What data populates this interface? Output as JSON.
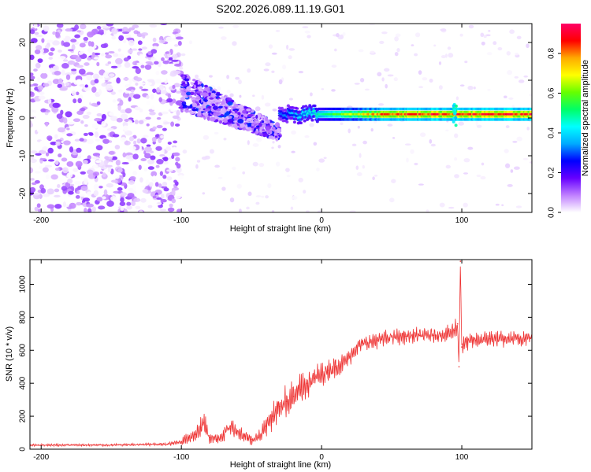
{
  "figure_title": "S202.2026.089.11.19.G01",
  "chart_data": [
    {
      "type": "heatmap",
      "title": "S202.2026.089.11.19.G01",
      "xlabel": "Height of straight line (km)",
      "ylabel": "Frequency (Hz)",
      "xlim": [
        -208,
        150
      ],
      "ylim": [
        -25,
        25
      ],
      "xticks": [
        -200,
        -100,
        0,
        100
      ],
      "yticks": [
        -20,
        -10,
        0,
        10,
        20
      ],
      "xtick_labels": [
        "-200",
        "-100",
        "0",
        "100"
      ],
      "ytick_labels": [
        "-20",
        "-10",
        "0",
        "10",
        "20"
      ],
      "grid": false,
      "colorbar": {
        "label": "Normalized spectral amplitude",
        "range": [
          0.0,
          0.95
        ],
        "ticks": [
          0.0,
          0.2,
          0.4,
          0.6,
          0.8
        ],
        "tick_labels": [
          "0.0",
          "0.2",
          "0.4",
          "0.6",
          "0.8"
        ],
        "colormap": [
          "#ffffff",
          "#c080ff",
          "#6600ff",
          "#0000ff",
          "#00aaff",
          "#00ffff",
          "#00ff66",
          "#66ff00",
          "#ffff00",
          "#ffaa00",
          "#ff0000",
          "#ff0066"
        ]
      },
      "regions": [
        {
          "name": "noise",
          "x_range": [
            -208,
            -100
          ],
          "freq_range": [
            -25,
            25
          ],
          "amplitude_range": [
            0.0,
            0.15
          ]
        },
        {
          "name": "transition",
          "x_range": [
            -100,
            -30
          ],
          "freq_center": [
            7,
            -4
          ],
          "freq_spread": 5,
          "amplitude_range": [
            0.05,
            0.3
          ]
        },
        {
          "name": "line",
          "x_range": [
            -30,
            150
          ],
          "freq_center": 1,
          "amplitude_range": [
            0.3,
            0.95
          ]
        }
      ]
    },
    {
      "type": "line",
      "xlabel": "Height of straight line (km)",
      "ylabel": "SNR (10 * v/v)",
      "xlim": [
        -208,
        150
      ],
      "ylim": [
        0,
        1150
      ],
      "xticks": [
        -200,
        -100,
        0,
        100
      ],
      "yticks": [
        0,
        200,
        400,
        600,
        800,
        1000
      ],
      "xtick_labels": [
        "-200",
        "-100",
        "0",
        "100"
      ],
      "ytick_labels": [
        "0",
        "200",
        "400",
        "600",
        "800",
        "1000"
      ],
      "grid": false,
      "series": [
        {
          "name": "SNR",
          "color": "#ee3333",
          "x": [
            -208,
            -150,
            -110,
            -100,
            -95,
            -90,
            -86,
            -84,
            -80,
            -75,
            -70,
            -65,
            -60,
            -55,
            -50,
            -45,
            -40,
            -35,
            -30,
            -25,
            -20,
            -15,
            -10,
            -5,
            0,
            5,
            10,
            15,
            20,
            25,
            30,
            40,
            50,
            60,
            70,
            80,
            90,
            95,
            97,
            98,
            99,
            100,
            103,
            110,
            120,
            130,
            140,
            150
          ],
          "values": [
            25,
            25,
            30,
            45,
            70,
            90,
            130,
            160,
            70,
            60,
            90,
            140,
            110,
            80,
            60,
            70,
            140,
            200,
            260,
            290,
            320,
            360,
            400,
            430,
            450,
            480,
            500,
            520,
            560,
            620,
            640,
            660,
            680,
            685,
            690,
            690,
            700,
            720,
            760,
            500,
            1140,
            620,
            650,
            660,
            670,
            665,
            670,
            680
          ],
          "ripple_amplitude": [
            8,
            8,
            10,
            25,
            40,
            55,
            90,
            80,
            45,
            40,
            55,
            70,
            60,
            45,
            40,
            45,
            70,
            90,
            100,
            110,
            110,
            110,
            100,
            90,
            80,
            75,
            70,
            65,
            60,
            55,
            55,
            55,
            55,
            55,
            55,
            55,
            60,
            70,
            90,
            0,
            0,
            60,
            55,
            55,
            55,
            55,
            55,
            55
          ]
        }
      ]
    }
  ]
}
